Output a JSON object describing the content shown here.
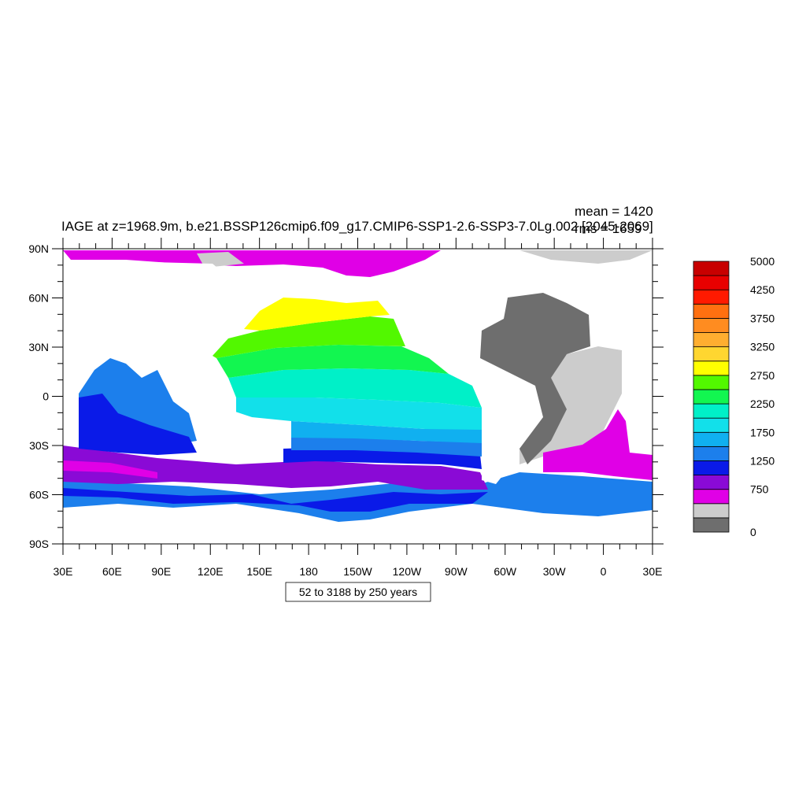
{
  "title": "IAGE at z=1968.9m, b.e21.BSSP126cmip6.f09_g17.CMIP6-SSP1-2.6-SSP3-7.0Lg.002 [2045-2069]",
  "stats": {
    "mean_label": "mean = 1420",
    "rms_label": "rms = 1659"
  },
  "contour_info": "52 to 3188 by 250 years",
  "map": {
    "projection": "cylindrical-equidistant",
    "lon_range": [
      30,
      390
    ],
    "lat_range": [
      -90,
      90
    ],
    "lat_tick_labels": [
      "90N",
      "60N",
      "30N",
      "0",
      "30S",
      "60S",
      "90S"
    ],
    "lon_tick_labels": [
      "30E",
      "60E",
      "90E",
      "120E",
      "150E",
      "180",
      "150W",
      "120W",
      "90W",
      "60W",
      "30W",
      "0",
      "30E"
    ],
    "missing_color": "#ffffff",
    "regions": [
      {
        "name": "South Atlantic",
        "value_range": "750-1000",
        "color": "#e000e6"
      },
      {
        "name": "Southern Ocean (Pacific sector)",
        "value_range": "1000-1250",
        "color": "#0a1ae8"
      },
      {
        "name": "Southern Ocean (outer band)",
        "value_range": "1250-1500",
        "color": "#1c7fec"
      },
      {
        "name": "Indian Ocean south",
        "value_range": "1000-1250",
        "color": "#0a1ae8"
      },
      {
        "name": "Indian Ocean north",
        "value_range": "1250-1500",
        "color": "#1c7fec"
      },
      {
        "name": "Circumpolar core",
        "value_range": "750-1000",
        "color": "#8a0ad6"
      },
      {
        "name": "South Pacific",
        "value_range": "1500-2250",
        "color": "#12e0ea"
      },
      {
        "name": "Equatorial Pacific",
        "value_range": "2250-2500",
        "color": "#00f0c8"
      },
      {
        "name": "North Pacific",
        "value_range": "2500-3000",
        "color": "#52f800"
      },
      {
        "name": "Subpolar North Pacific",
        "value_range": "3000-3250",
        "color": "#ffff00"
      },
      {
        "name": "North Atlantic",
        "value_range": "250-500",
        "color": "#cccccc"
      },
      {
        "name": "Western North Atlantic",
        "value_range": "0-250",
        "color": "#6e6e6e"
      },
      {
        "name": "Arctic",
        "value_range": "750-1000",
        "color": "#e000e6"
      }
    ]
  },
  "colorbar": {
    "colors": [
      "#6e6e6e",
      "#cccccc",
      "#e000e6",
      "#8a0ad6",
      "#0a1ae8",
      "#1c7fec",
      "#10b0f0",
      "#12e0ea",
      "#00f0c8",
      "#12f650",
      "#52f800",
      "#ffff00",
      "#ffd630",
      "#ffae30",
      "#ff8c20",
      "#ff7010",
      "#ff1a00",
      "#e80000",
      "#c80000"
    ],
    "labels": [
      "0",
      "750",
      "1250",
      "1750",
      "2250",
      "2750",
      "3250",
      "3750",
      "4250",
      "5000"
    ]
  }
}
